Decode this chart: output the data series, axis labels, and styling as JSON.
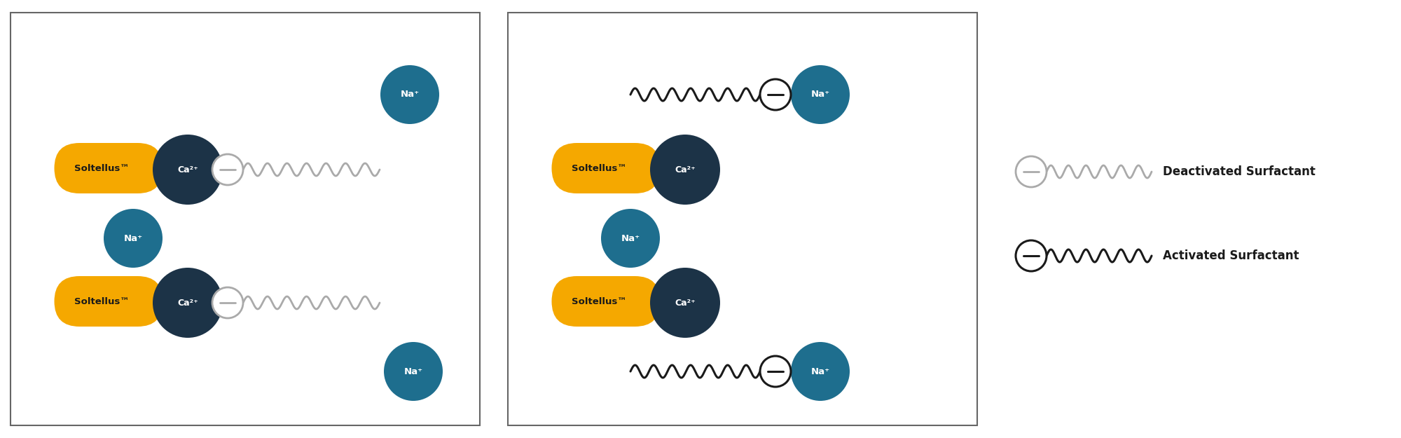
{
  "fig_width": 20.0,
  "fig_height": 6.25,
  "dpi": 100,
  "bg_color": "#ffffff",
  "orange_color": "#F5A800",
  "dark_navy_color": "#1C3347",
  "teal_color": "#1E6E8E",
  "gray_color": "#AAAAAA",
  "black_color": "#1A1A1A",
  "soltellus_label": "Soltellus™",
  "ca_label": "Ca²⁺",
  "na_label": "Na⁺",
  "deact_label": "Deactivated Surfactant",
  "act_label": "Activated Surfactant"
}
